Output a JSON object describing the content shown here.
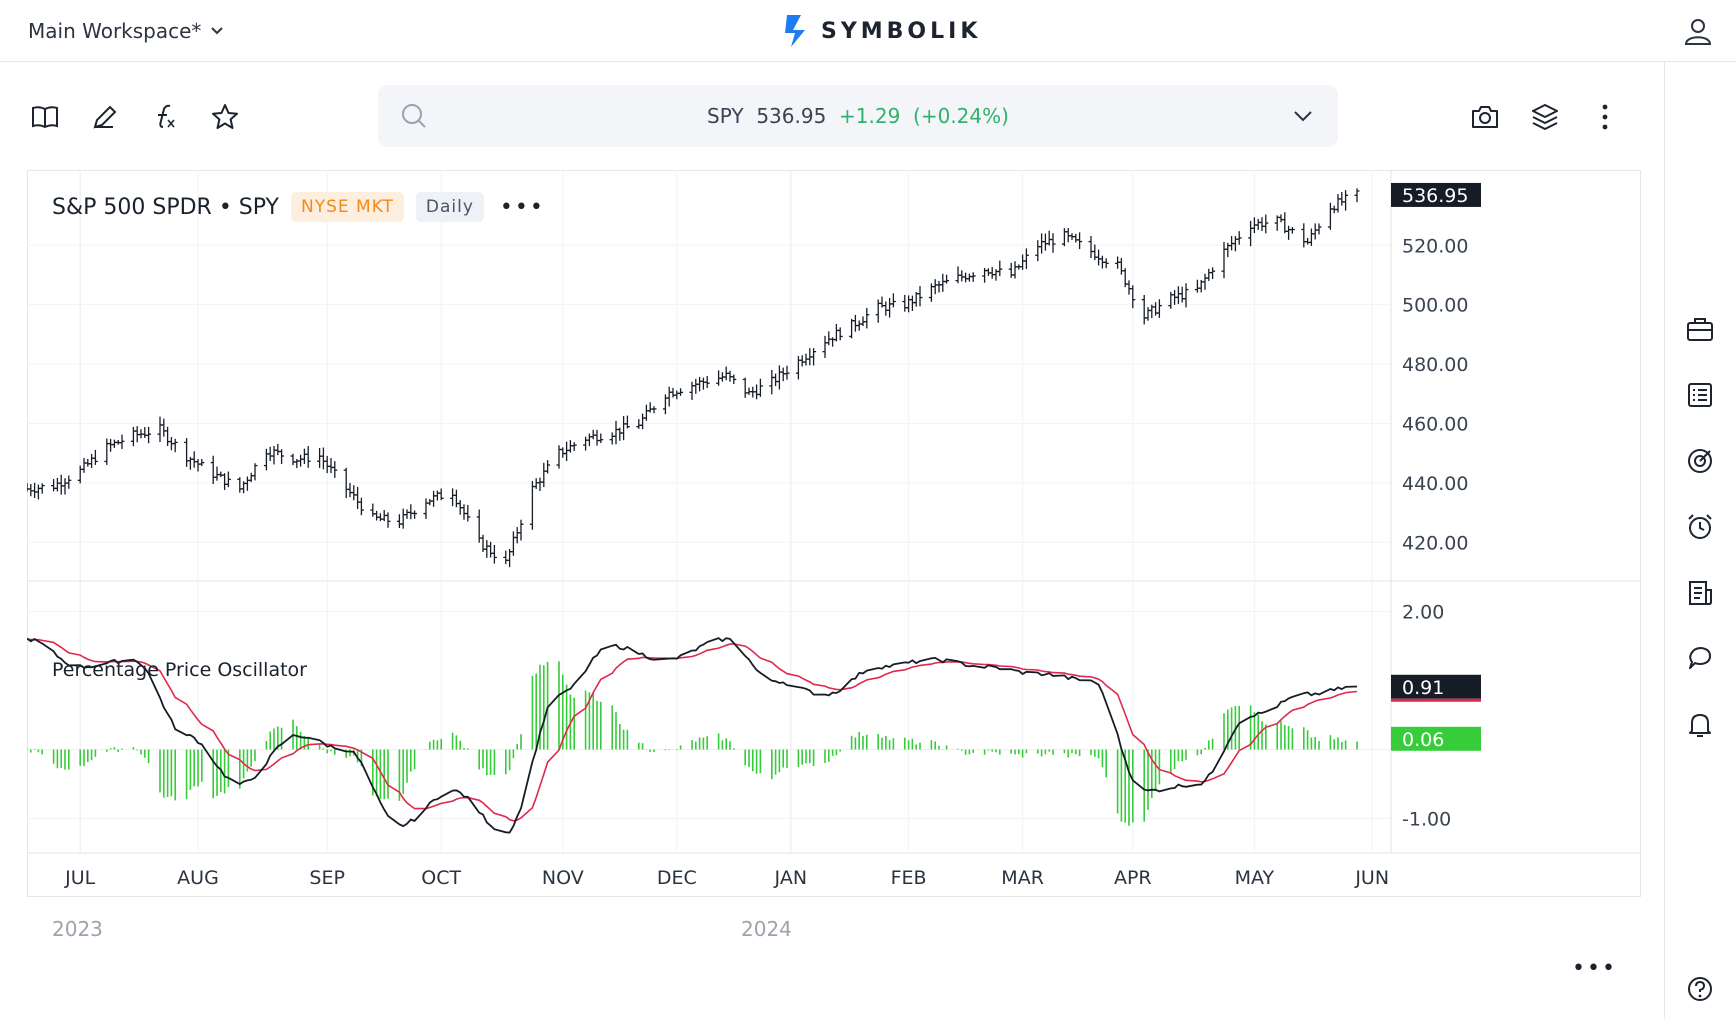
{
  "header": {
    "workspace_label": "Main Workspace*",
    "logo_text": "SYMBOLIK"
  },
  "toolbar": {
    "tools": [
      "book-icon",
      "pencil-icon",
      "function-icon",
      "star-icon"
    ],
    "right_tools": [
      "camera-icon",
      "layers-icon",
      "more-vertical-icon"
    ]
  },
  "search": {
    "symbol": "SPY",
    "last": "536.95",
    "change": "+1.29",
    "change_pct": "(+0.24%)"
  },
  "chart": {
    "title": "S&P 500 SPDR • SPY",
    "exchange": "NYSE MKT",
    "interval": "Daily",
    "title_more": "•••",
    "oscillator_title": "Percentage Price Oscillator",
    "bottom_more": "•••",
    "years": [
      "2023",
      "2024"
    ]
  },
  "right_rail": [
    "briefcase-icon",
    "list-icon",
    "radar-icon",
    "alarm-clock-icon",
    "news-icon",
    "chat-icon",
    "bell-icon",
    "help-icon"
  ],
  "colors": {
    "accent_blue": "#1c7cf0",
    "up_green": "#2fb26b",
    "signal_red": "#e0284a",
    "histogram_green": "#37cc3a",
    "label_dark": "#161d27"
  },
  "chart_data": [
    {
      "type": "bar",
      "style": "ohlc",
      "series_name": "SPY",
      "x_labels": [
        "JUL",
        "AUG",
        "SEP",
        "OCT",
        "NOV",
        "DEC",
        "JAN",
        "FEB",
        "MAR",
        "APR",
        "MAY",
        "JUN"
      ],
      "y_ticks": [
        "420.00",
        "440.00",
        "460.00",
        "480.00",
        "500.00",
        "520.00"
      ],
      "ylim": [
        410,
        544
      ],
      "last_value_label": "536.95",
      "close_path": [
        [
          "2023-06-26",
          438
        ],
        [
          "2023-07-03",
          439
        ],
        [
          "2023-07-10",
          444
        ],
        [
          "2023-07-17",
          452
        ],
        [
          "2023-07-24",
          456
        ],
        [
          "2023-07-31",
          458
        ],
        [
          "2023-08-07",
          449
        ],
        [
          "2023-08-14",
          443
        ],
        [
          "2023-08-21",
          438
        ],
        [
          "2023-08-28",
          451
        ],
        [
          "2023-09-05",
          448
        ],
        [
          "2023-09-11",
          449
        ],
        [
          "2023-09-18",
          438
        ],
        [
          "2023-09-25",
          428
        ],
        [
          "2023-10-02",
          427
        ],
        [
          "2023-10-09",
          434
        ],
        [
          "2023-10-16",
          437
        ],
        [
          "2023-10-23",
          420
        ],
        [
          "2023-10-30",
          413
        ],
        [
          "2023-11-06",
          438
        ],
        [
          "2023-11-13",
          450
        ],
        [
          "2023-11-20",
          455
        ],
        [
          "2023-11-27",
          457
        ],
        [
          "2023-12-04",
          460
        ],
        [
          "2023-12-11",
          470
        ],
        [
          "2023-12-18",
          473
        ],
        [
          "2023-12-27",
          476
        ],
        [
          "2024-01-02",
          470
        ],
        [
          "2024-01-08",
          474
        ],
        [
          "2024-01-16",
          482
        ],
        [
          "2024-01-22",
          488
        ],
        [
          "2024-01-29",
          493
        ],
        [
          "2024-02-05",
          499
        ],
        [
          "2024-02-12",
          500
        ],
        [
          "2024-02-20",
          506
        ],
        [
          "2024-02-26",
          509
        ],
        [
          "2024-03-04",
          512
        ],
        [
          "2024-03-11",
          510
        ],
        [
          "2024-03-18",
          520
        ],
        [
          "2024-03-25",
          523
        ],
        [
          "2024-04-01",
          518
        ],
        [
          "2024-04-08",
          513
        ],
        [
          "2024-04-15",
          496
        ],
        [
          "2024-04-22",
          502
        ],
        [
          "2024-04-29",
          505
        ],
        [
          "2024-05-06",
          518
        ],
        [
          "2024-05-13",
          527
        ],
        [
          "2024-05-20",
          528
        ],
        [
          "2024-05-28",
          521
        ],
        [
          "2024-06-03",
          533
        ],
        [
          "2024-06-10",
          536.95
        ]
      ]
    },
    {
      "type": "line",
      "title": "Percentage Price Oscillator",
      "y_ticks": [
        "2.00",
        "-1.00"
      ],
      "ylim": [
        -1.5,
        2.4
      ],
      "last_value_labels": [
        "0.91",
        "0.06"
      ],
      "series": [
        {
          "name": "PPO",
          "color": "#161d27"
        },
        {
          "name": "Signal",
          "color": "#e0284a"
        },
        {
          "name": "Histogram",
          "color": "#37cc3a"
        }
      ],
      "ppo_path": [
        [
          "2023-06-26",
          1.6
        ],
        [
          "2023-07-10",
          1.2
        ],
        [
          "2023-07-24",
          1.3
        ],
        [
          "2023-08-07",
          0.2
        ],
        [
          "2023-08-21",
          -0.5
        ],
        [
          "2023-09-05",
          0.2
        ],
        [
          "2023-09-18",
          0.0
        ],
        [
          "2023-10-02",
          -1.1
        ],
        [
          "2023-10-16",
          -0.6
        ],
        [
          "2023-10-30",
          -1.2
        ],
        [
          "2023-11-13",
          0.8
        ],
        [
          "2023-11-27",
          1.5
        ],
        [
          "2023-12-11",
          1.3
        ],
        [
          "2023-12-27",
          1.6
        ],
        [
          "2024-01-08",
          1.0
        ],
        [
          "2024-01-22",
          0.8
        ],
        [
          "2024-02-05",
          1.2
        ],
        [
          "2024-02-20",
          1.3
        ],
        [
          "2024-03-04",
          1.2
        ],
        [
          "2024-03-18",
          1.1
        ],
        [
          "2024-04-01",
          1.0
        ],
        [
          "2024-04-15",
          -0.6
        ],
        [
          "2024-04-29",
          -0.5
        ],
        [
          "2024-05-13",
          0.5
        ],
        [
          "2024-05-28",
          0.8
        ],
        [
          "2024-06-10",
          0.91
        ]
      ]
    }
  ]
}
